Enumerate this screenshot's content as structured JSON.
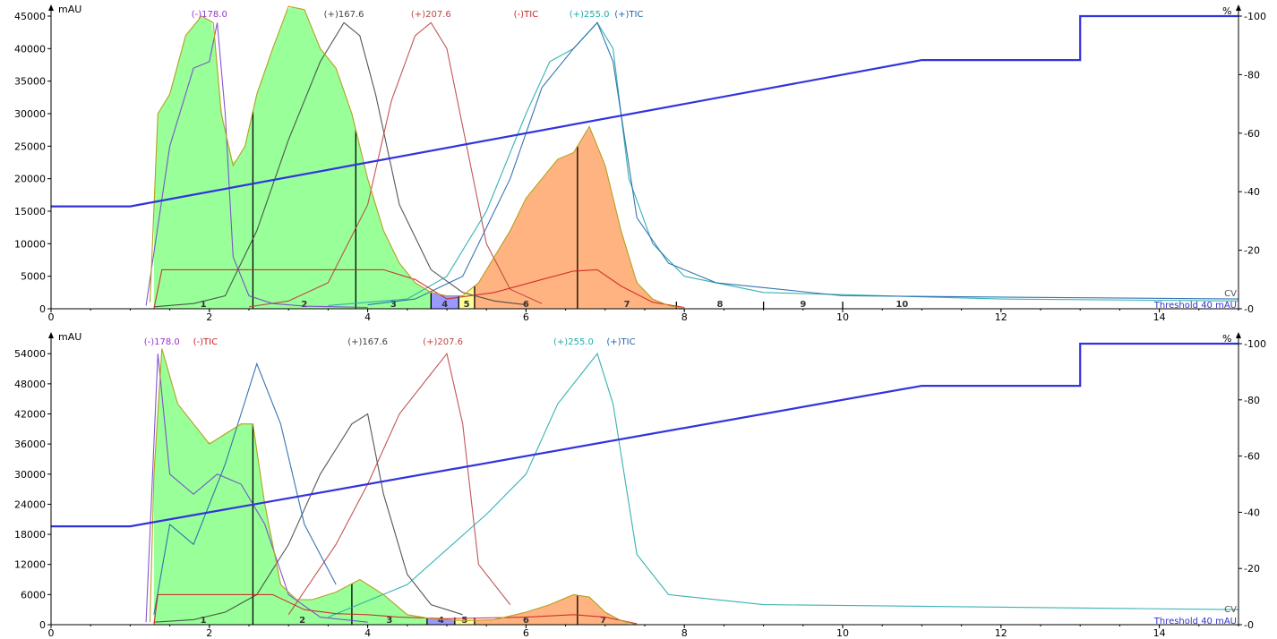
{
  "chart_data": [
    {
      "type": "line",
      "panel": "top",
      "y_unit": "mAU",
      "y2_unit": "%",
      "xlim": [
        0,
        15
      ],
      "ylim": [
        0,
        45000
      ],
      "y2lim": [
        0,
        100
      ],
      "x_ticks": [
        "0",
        "2",
        "4",
        "6",
        "8",
        "10",
        "12",
        "14"
      ],
      "y_ticks": [
        "0",
        "5000",
        "10000",
        "15000",
        "20000",
        "25000",
        "30000",
        "35000",
        "40000",
        "45000"
      ],
      "y2_ticks": [
        "0",
        "20",
        "40",
        "60",
        "80",
        "100"
      ],
      "trace_labels": [
        {
          "text": "(-)178.0",
          "x": 2.0,
          "color": "#9933cc"
        },
        {
          "text": "(+)167.6",
          "x": 3.7,
          "color": "#444444"
        },
        {
          "text": "(+)207.6",
          "x": 4.8,
          "color": "#bb4444"
        },
        {
          "text": "(-)TIC",
          "x": 6.0,
          "color": "#cc2222"
        },
        {
          "text": "(+)255.0",
          "x": 6.8,
          "color": "#22aaaa"
        },
        {
          "text": "(+)TIC",
          "x": 7.3,
          "color": "#2266aa"
        }
      ],
      "threshold_label": "Threshold 40 mAU",
      "cv_label": "CV",
      "fractions": [
        {
          "label": "1",
          "start": 1.3,
          "end": 2.55,
          "color": "#99ff99"
        },
        {
          "label": "2",
          "start": 2.55,
          "end": 3.85,
          "color": "#99ff99"
        },
        {
          "label": "3",
          "start": 3.85,
          "end": 4.8,
          "color": "#99ff99"
        },
        {
          "label": "4",
          "start": 4.8,
          "end": 5.15,
          "color": "#9999ff"
        },
        {
          "label": "5",
          "start": 5.15,
          "end": 5.35,
          "color": "#ffff99"
        },
        {
          "label": "6",
          "start": 5.35,
          "end": 6.65,
          "color": "#ffb380"
        },
        {
          "label": "7",
          "start": 6.65,
          "end": 7.9,
          "color": "#ffb380"
        },
        {
          "label": "8",
          "start": 7.9,
          "end": 9.0,
          "color": "#ffffff"
        },
        {
          "label": "9",
          "start": 9.0,
          "end": 10.0,
          "color": "#ffffff"
        },
        {
          "label": "10",
          "start": 10.0,
          "end": 11.5,
          "color": "#ffffff"
        }
      ],
      "gradient_percent": {
        "x": [
          0,
          1,
          11,
          13,
          13,
          15
        ],
        "y": [
          35,
          35,
          85,
          85,
          100,
          100
        ]
      },
      "uv_trace": {
        "x": [
          1.25,
          1.35,
          1.5,
          1.7,
          1.9,
          2.05,
          2.15,
          2.3,
          2.45,
          2.6,
          2.8,
          3.0,
          3.2,
          3.4,
          3.6,
          3.8,
          4.0,
          4.2,
          4.4,
          4.6,
          4.8,
          5.0,
          5.2,
          5.4,
          5.6,
          5.8,
          6.0,
          6.2,
          6.4,
          6.6,
          6.8,
          7.0,
          7.2,
          7.4,
          7.6,
          7.8,
          8.0
        ],
        "y": [
          1000,
          30000,
          33000,
          42000,
          45000,
          44000,
          30000,
          22000,
          25000,
          33000,
          40000,
          46500,
          46000,
          40000,
          37000,
          30000,
          20000,
          12000,
          7000,
          4000,
          2500,
          2000,
          2000,
          4000,
          8000,
          12000,
          17000,
          20000,
          23000,
          24000,
          28000,
          22000,
          12000,
          4000,
          1500,
          500,
          0
        ]
      },
      "series": [
        {
          "name": "(+)167.6",
          "color": "#444444",
          "x": [
            1.3,
            1.8,
            2.2,
            2.6,
            3.0,
            3.4,
            3.7,
            3.9,
            4.1,
            4.4,
            4.8,
            5.2,
            5.6,
            6.0
          ],
          "y": [
            300,
            800,
            2000,
            12000,
            26000,
            38000,
            44000,
            42000,
            33000,
            16000,
            6000,
            2500,
            1200,
            600
          ]
        },
        {
          "name": "(+)207.6",
          "color": "#bb4444",
          "x": [
            2.5,
            3.0,
            3.5,
            4.0,
            4.3,
            4.6,
            4.8,
            5.0,
            5.2,
            5.5,
            5.8,
            6.2
          ],
          "y": [
            300,
            1200,
            4000,
            16000,
            32000,
            42000,
            44000,
            40000,
            28000,
            10000,
            3000,
            800
          ]
        },
        {
          "name": "(+)255.0",
          "color": "#22aaaa",
          "x": [
            3.5,
            4.5,
            5.0,
            5.5,
            6.0,
            6.3,
            6.6,
            6.9,
            7.1,
            7.3,
            7.6,
            8.0,
            9.0,
            12.0,
            15.0
          ],
          "y": [
            500,
            1500,
            5000,
            15000,
            30000,
            38000,
            40000,
            44000,
            40000,
            20000,
            10000,
            5000,
            2500,
            1500,
            1200
          ]
        },
        {
          "name": "(-)178.0",
          "color": "#7744cc",
          "x": [
            1.2,
            1.5,
            1.8,
            2.0,
            2.1,
            2.2,
            2.3,
            2.5,
            2.8,
            3.2,
            4.0
          ],
          "y": [
            500,
            25000,
            37000,
            38000,
            44000,
            30000,
            8000,
            2000,
            800,
            400,
            200
          ]
        },
        {
          "name": "(+)TIC",
          "color": "#2266aa",
          "x": [
            4.0,
            4.6,
            5.2,
            5.8,
            6.2,
            6.6,
            6.9,
            7.1,
            7.4,
            7.8,
            8.4,
            10.0,
            15.0
          ],
          "y": [
            600,
            1500,
            5000,
            20000,
            34000,
            40000,
            44000,
            38000,
            14000,
            7000,
            4000,
            2000,
            1500
          ]
        },
        {
          "name": "(-)TIC",
          "color": "#cc2222",
          "x": [
            1.3,
            1.4,
            4.2,
            4.6,
            5.0,
            5.6,
            6.2,
            6.6,
            6.9,
            7.2,
            7.6,
            8.0
          ],
          "y": [
            0,
            6000,
            6000,
            4500,
            1500,
            2500,
            4500,
            5800,
            6000,
            3500,
            1000,
            200
          ]
        }
      ]
    },
    {
      "type": "line",
      "panel": "bottom",
      "y_unit": "mAU",
      "y2_unit": "%",
      "xlim": [
        0,
        15
      ],
      "ylim": [
        0,
        56000
      ],
      "y2lim": [
        0,
        100
      ],
      "x_ticks": [
        "0",
        "2",
        "4",
        "6",
        "8",
        "10",
        "12",
        "14"
      ],
      "y_ticks": [
        "0",
        "6000",
        "12000",
        "18000",
        "24000",
        "30000",
        "36000",
        "42000",
        "48000",
        "54000"
      ],
      "y2_ticks": [
        "0",
        "20",
        "40",
        "60",
        "80",
        "100"
      ],
      "trace_labels": [
        {
          "text": "(-)178.0",
          "x": 1.4,
          "color": "#9933cc"
        },
        {
          "text": "(-)TIC",
          "x": 1.95,
          "color": "#cc2222"
        },
        {
          "text": "(+)207.6",
          "x": 4.95,
          "color": "#bb4444"
        },
        {
          "text": "(+)167.6",
          "x": 4.0,
          "color": "#444444"
        },
        {
          "text": "(+)255.0",
          "x": 6.6,
          "color": "#22aaaa"
        },
        {
          "text": "(+)TIC",
          "x": 7.2,
          "color": "#2266aa"
        }
      ],
      "threshold_label": "Threshold 40 mAU",
      "cv_label": "CV",
      "fractions": [
        {
          "label": "1",
          "start": 1.3,
          "end": 2.55,
          "color": "#99ff99"
        },
        {
          "label": "2",
          "start": 2.55,
          "end": 3.8,
          "color": "#99ff99"
        },
        {
          "label": "3",
          "start": 3.8,
          "end": 4.75,
          "color": "#99ff99"
        },
        {
          "label": "4",
          "start": 4.75,
          "end": 5.1,
          "color": "#9999ff"
        },
        {
          "label": "5",
          "start": 5.1,
          "end": 5.35,
          "color": "#ffff99"
        },
        {
          "label": "6",
          "start": 5.35,
          "end": 6.65,
          "color": "#ffb380"
        },
        {
          "label": "7",
          "start": 6.65,
          "end": 7.3,
          "color": "#ffb380"
        }
      ],
      "gradient_percent": {
        "x": [
          0,
          1,
          11,
          13,
          13,
          15
        ],
        "y": [
          35,
          35,
          85,
          85,
          100,
          100
        ]
      },
      "uv_trace": {
        "x": [
          1.25,
          1.3,
          1.4,
          1.6,
          1.8,
          2.0,
          2.2,
          2.4,
          2.55,
          2.7,
          2.9,
          3.1,
          3.3,
          3.6,
          3.9,
          4.2,
          4.5,
          4.8,
          5.2,
          5.6,
          6.0,
          6.3,
          6.6,
          6.8,
          7.0,
          7.2,
          7.4
        ],
        "y": [
          500,
          30000,
          55000,
          44000,
          40000,
          36000,
          38000,
          40000,
          40000,
          24000,
          8000,
          5000,
          5000,
          6500,
          9000,
          6000,
          2000,
          1200,
          800,
          1000,
          2500,
          4000,
          6000,
          5500,
          2500,
          800,
          0
        ]
      },
      "series": [
        {
          "name": "(+)167.6",
          "color": "#444444",
          "x": [
            1.3,
            1.8,
            2.2,
            2.6,
            3.0,
            3.4,
            3.8,
            4.0,
            4.2,
            4.5,
            4.8,
            5.2
          ],
          "y": [
            500,
            1000,
            2500,
            6000,
            16000,
            30000,
            40000,
            42000,
            26000,
            10000,
            4000,
            2000
          ]
        },
        {
          "name": "(+)207.6",
          "color": "#bb4444",
          "x": [
            3.0,
            3.6,
            4.0,
            4.4,
            4.8,
            5.0,
            5.2,
            5.4,
            5.8
          ],
          "y": [
            2000,
            16000,
            28000,
            42000,
            50000,
            54000,
            40000,
            12000,
            4000
          ]
        },
        {
          "name": "(+)255.0",
          "color": "#22aaaa",
          "x": [
            3.5,
            4.5,
            5.5,
            6.0,
            6.4,
            6.7,
            6.9,
            7.1,
            7.4,
            7.8,
            9.0,
            15.0
          ],
          "y": [
            1500,
            8000,
            22000,
            30000,
            44000,
            50000,
            54000,
            44000,
            14000,
            6000,
            4000,
            3000
          ]
        },
        {
          "name": "(-)178.0",
          "color": "#7744cc",
          "x": [
            1.2,
            1.35,
            1.5,
            1.8,
            2.1,
            2.4,
            2.7,
            3.0,
            3.4,
            4.0
          ],
          "y": [
            500,
            54000,
            30000,
            26000,
            30000,
            28000,
            20000,
            6000,
            1500,
            500
          ]
        },
        {
          "name": "(+)TIC",
          "color": "#2266aa",
          "x": [
            1.3,
            1.5,
            1.8,
            2.2,
            2.6,
            2.9,
            3.2,
            3.6
          ],
          "y": [
            2000,
            20000,
            16000,
            32000,
            52000,
            40000,
            20000,
            8000
          ]
        },
        {
          "name": "(-)TIC",
          "color": "#cc2222",
          "x": [
            1.3,
            1.35,
            2.8,
            3.2,
            3.6,
            4.0,
            4.4,
            5.0,
            6.0,
            6.6,
            7.0,
            7.4
          ],
          "y": [
            0,
            6000,
            6000,
            3000,
            2200,
            2000,
            1500,
            1200,
            1500,
            2000,
            1500,
            200
          ]
        }
      ]
    }
  ]
}
